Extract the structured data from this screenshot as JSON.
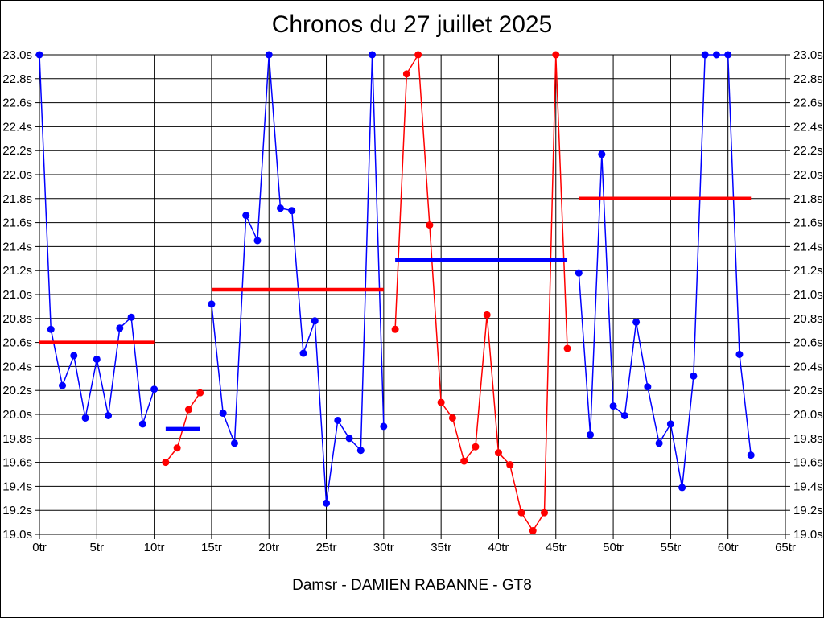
{
  "chart_data": {
    "type": "line",
    "title": "Chronos du 27 juillet 2025",
    "footer": "Damsr - DAMIEN RABANNE - GT8",
    "xlim": [
      0,
      65
    ],
    "ylim": [
      19.0,
      23.0
    ],
    "grid": true,
    "x_unit": "tr",
    "y_unit": "s",
    "x_ticks": {
      "values": [
        0,
        5,
        10,
        15,
        20,
        25,
        30,
        35,
        40,
        45,
        50,
        55,
        60,
        65
      ],
      "labels": [
        "0tr",
        "5tr",
        "10tr",
        "15tr",
        "20tr",
        "25tr",
        "30tr",
        "35tr",
        "40tr",
        "45tr",
        "50tr",
        "55tr",
        "60tr",
        "65tr"
      ]
    },
    "y_ticks": {
      "values": [
        23.0,
        22.8,
        22.6,
        22.4,
        22.2,
        22.0,
        21.8,
        21.6,
        21.4,
        21.2,
        21.0,
        20.8,
        20.6,
        20.4,
        20.2,
        20.0,
        19.8,
        19.6,
        19.4,
        19.2,
        19.0
      ],
      "labels": [
        "23.0s",
        "22.8s",
        "22.6s",
        "22.4s",
        "22.2s",
        "22.0s",
        "21.8s",
        "21.6s",
        "21.4s",
        "21.2s",
        "21.0s",
        "20.8s",
        "20.6s",
        "20.4s",
        "20.2s",
        "20.0s",
        "19.8s",
        "19.6s",
        "19.4s",
        "19.2s",
        "19.0s"
      ]
    },
    "colors": {
      "blue_series": "#0000ff",
      "red_series": "#ff0000",
      "grid": "#000000",
      "background": "#ffffff"
    },
    "series": [
      {
        "name": "blue-laps",
        "color": "#0000ff",
        "segments": [
          [
            [
              0,
              23.0
            ],
            [
              1,
              20.71
            ],
            [
              2,
              20.24
            ],
            [
              3,
              20.49
            ],
            [
              4,
              19.97
            ],
            [
              5,
              20.46
            ],
            [
              6,
              19.99
            ],
            [
              7,
              20.72
            ],
            [
              8,
              20.81
            ],
            [
              9,
              19.92
            ],
            [
              10,
              20.21
            ]
          ],
          [
            [
              15,
              20.92
            ],
            [
              16,
              20.01
            ],
            [
              17,
              19.76
            ],
            [
              18,
              21.66
            ],
            [
              19,
              21.45
            ],
            [
              20,
              23.0
            ],
            [
              21,
              21.72
            ],
            [
              22,
              21.7
            ],
            [
              23,
              20.51
            ],
            [
              24,
              20.78
            ],
            [
              25,
              19.26
            ],
            [
              26,
              19.95
            ],
            [
              27,
              19.8
            ],
            [
              28,
              19.7
            ],
            [
              29,
              23.0
            ],
            [
              30,
              19.9
            ]
          ],
          [
            [
              47,
              21.18
            ],
            [
              48,
              19.83
            ],
            [
              49,
              22.17
            ],
            [
              50,
              20.07
            ],
            [
              51,
              19.99
            ],
            [
              52,
              20.77
            ],
            [
              53,
              20.23
            ],
            [
              54,
              19.76
            ],
            [
              55,
              19.92
            ],
            [
              56,
              19.39
            ],
            [
              57,
              20.32
            ],
            [
              58,
              23.0
            ],
            [
              59,
              23.0
            ],
            [
              60,
              23.0
            ],
            [
              61,
              20.5
            ],
            [
              62,
              19.66
            ]
          ]
        ]
      },
      {
        "name": "red-laps",
        "color": "#ff0000",
        "segments": [
          [
            [
              11,
              19.6
            ],
            [
              12,
              19.72
            ],
            [
              13,
              20.04
            ],
            [
              14,
              20.18
            ]
          ],
          [
            [
              31,
              20.71
            ],
            [
              32,
              22.84
            ],
            [
              33,
              23.0
            ],
            [
              34,
              21.58
            ],
            [
              35,
              20.1
            ],
            [
              36,
              19.97
            ],
            [
              37,
              19.61
            ],
            [
              38,
              19.73
            ],
            [
              39,
              20.83
            ],
            [
              40,
              19.68
            ],
            [
              41,
              19.58
            ],
            [
              42,
              19.18
            ],
            [
              43,
              19.03
            ],
            [
              44,
              19.18
            ],
            [
              45,
              23.0
            ],
            [
              46,
              20.55
            ]
          ]
        ]
      }
    ],
    "average_lines": [
      {
        "name": "avg-red-stint-1",
        "color": "#ff0000",
        "y": 20.6,
        "x_start": 0,
        "x_end": 10
      },
      {
        "name": "avg-blue-stint-1",
        "color": "#0000ff",
        "y": 19.88,
        "x_start": 11,
        "x_end": 14
      },
      {
        "name": "avg-red-stint-2",
        "color": "#ff0000",
        "y": 21.04,
        "x_start": 15,
        "x_end": 30
      },
      {
        "name": "avg-blue-stint-2",
        "color": "#0000ff",
        "y": 21.29,
        "x_start": 31,
        "x_end": 46
      },
      {
        "name": "avg-red-stint-3",
        "color": "#ff0000",
        "y": 21.8,
        "x_start": 47,
        "x_end": 62
      }
    ]
  }
}
